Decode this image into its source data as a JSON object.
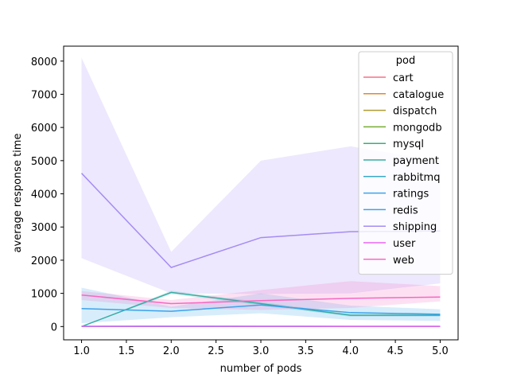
{
  "chart_data": {
    "type": "line",
    "title": "",
    "xlabel": "number of pods",
    "ylabel": "average response time",
    "x": [
      1.0,
      2.0,
      3.0,
      4.0,
      5.0
    ],
    "xlim": [
      0.8,
      5.2
    ],
    "ylim": [
      -400,
      8450
    ],
    "xticks": [
      1.0,
      1.5,
      2.0,
      2.5,
      3.0,
      3.5,
      4.0,
      4.5,
      5.0
    ],
    "xtick_labels": [
      "1.0",
      "1.5",
      "2.0",
      "2.5",
      "3.0",
      "3.5",
      "4.0",
      "4.5",
      "5.0"
    ],
    "yticks": [
      0,
      1000,
      2000,
      3000,
      4000,
      5000,
      6000,
      7000,
      8000
    ],
    "ytick_labels": [
      "0",
      "1000",
      "2000",
      "3000",
      "4000",
      "5000",
      "6000",
      "7000",
      "8000"
    ],
    "grid": false,
    "legend": {
      "title": "pod",
      "placement": "top-right"
    },
    "series": [
      {
        "name": "cart",
        "color": "#f77189",
        "values": [
          5,
          10,
          8,
          5,
          5
        ]
      },
      {
        "name": "catalogue",
        "color": "#dc8932",
        "values": [
          5,
          8,
          5,
          5,
          4
        ]
      },
      {
        "name": "dispatch",
        "color": "#ae9d31",
        "values": [
          3,
          5,
          3,
          3,
          3
        ]
      },
      {
        "name": "mongodb",
        "color": "#77ab31",
        "values": [
          3,
          3,
          3,
          3,
          3
        ]
      },
      {
        "name": "mysql",
        "color": "#33b07a",
        "values": [
          3,
          3,
          3,
          3,
          3
        ]
      },
      {
        "name": "payment",
        "color": "#36ada4",
        "values": [
          0,
          1030,
          690,
          340,
          340
        ],
        "band": {
          "lower": [
            0,
            980,
            640,
            300,
            300
          ],
          "upper": [
            0,
            1080,
            740,
            380,
            380
          ]
        }
      },
      {
        "name": "rabbitmq",
        "color": "#38a9c5",
        "values": [
          3,
          3,
          3,
          3,
          3
        ]
      },
      {
        "name": "ratings",
        "color": "#3ba3ec",
        "values": [
          540,
          460,
          650,
          420,
          370
        ],
        "band": {
          "lower": [
            100,
            280,
            400,
            200,
            170
          ],
          "upper": [
            1170,
            600,
            1000,
            630,
            520
          ]
        }
      },
      {
        "name": "redis",
        "color": "#3ba3ec",
        "values": [
          3,
          3,
          3,
          3,
          3
        ]
      },
      {
        "name": "shipping",
        "color": "#a48cf4",
        "values": [
          4620,
          1780,
          2680,
          2860,
          2880
        ],
        "band": {
          "lower": [
            2060,
            1000,
            980,
            1000,
            1300
          ],
          "upper": [
            8100,
            2250,
            5000,
            5430,
            4980
          ]
        }
      },
      {
        "name": "user",
        "color": "#e866f4",
        "values": [
          8,
          10,
          8,
          5,
          5
        ]
      },
      {
        "name": "web",
        "color": "#f668c2",
        "values": [
          950,
          690,
          780,
          850,
          890
        ],
        "band": {
          "lower": [
            800,
            560,
            500,
            560,
            760
          ],
          "upper": [
            1070,
            800,
            1100,
            1370,
            1220
          ]
        }
      }
    ]
  }
}
